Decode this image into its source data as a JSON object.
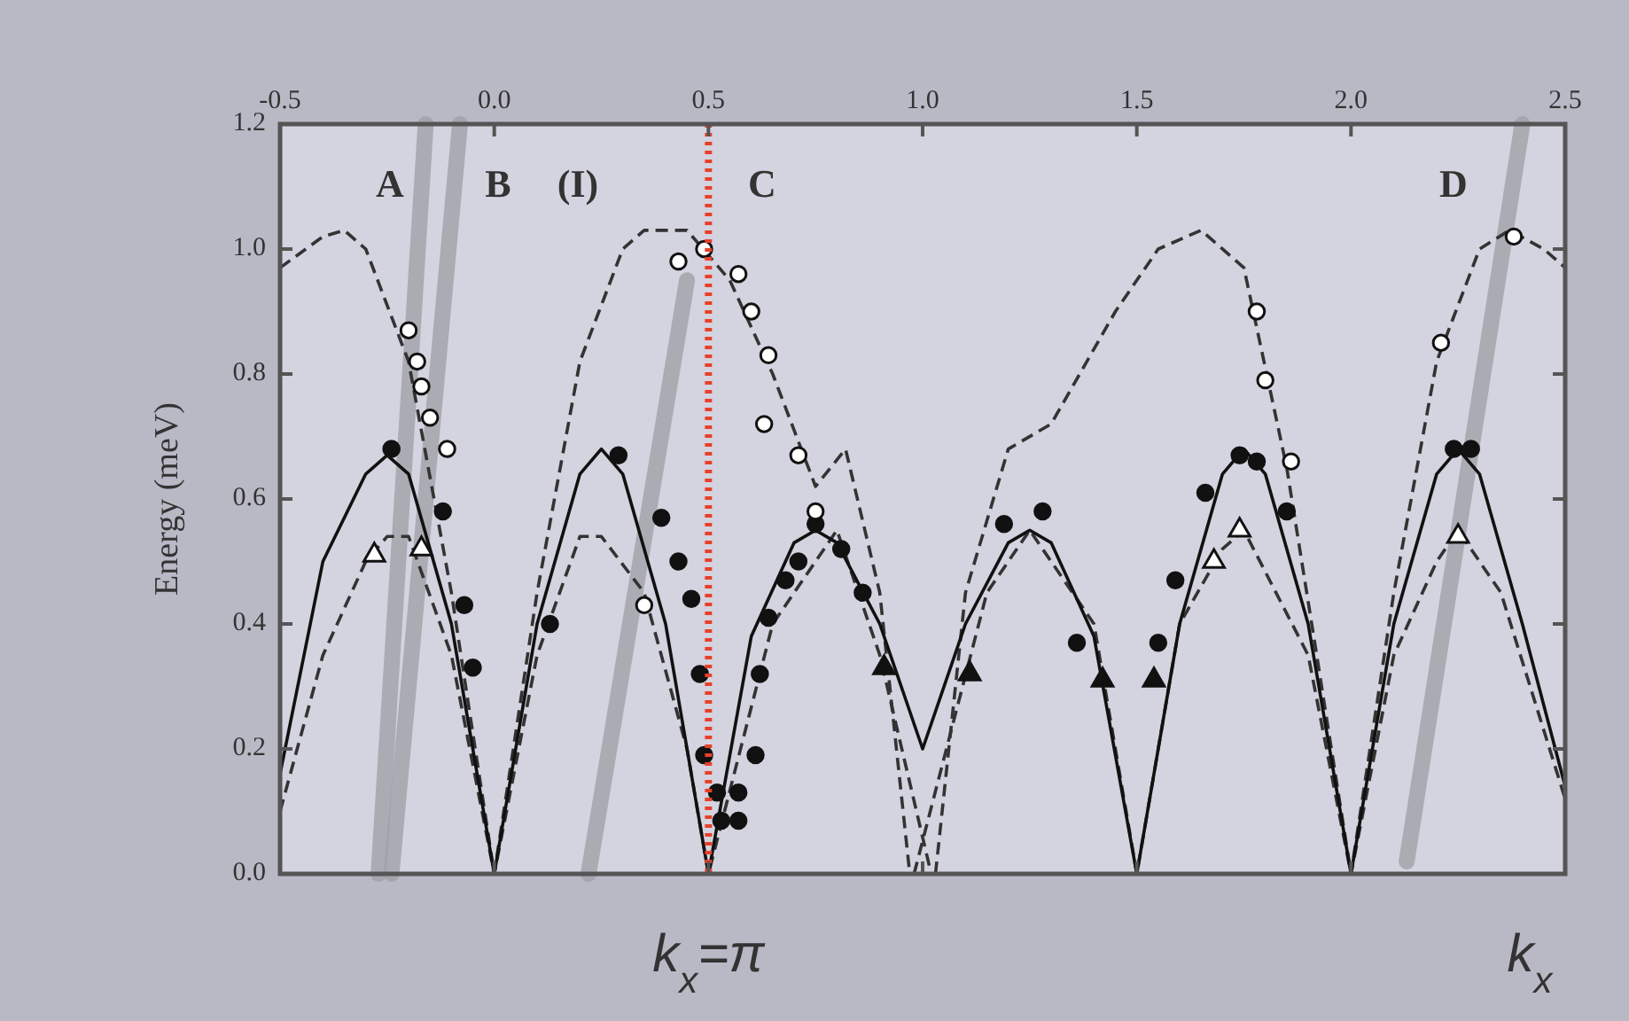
{
  "chart_data": {
    "type": "line",
    "ylabel": "Energy (meV)",
    "xlabel": "k$_{x}$",
    "xlim": [
      -0.5,
      2.5
    ],
    "xticks": [
      {
        "value": -0.5,
        "label": "-0.5"
      },
      {
        "value": 0,
        "label": "0.0"
      },
      {
        "value": 0.5,
        "label": "0.5"
      },
      {
        "value": 1,
        "label": "1.0"
      },
      {
        "value": 1.5,
        "label": "1.5"
      },
      {
        "value": 2,
        "label": "2.0"
      },
      {
        "value": 2.5,
        "label": "2.5"
      }
    ],
    "ylim": [
      0,
      1.2
    ],
    "yticks": [
      {
        "value": 0,
        "label": "0.0"
      },
      {
        "value": 0.2,
        "label": "0.2"
      },
      {
        "value": 0.4,
        "label": "0.4"
      },
      {
        "value": 0.6,
        "label": "0.6"
      },
      {
        "value": 0.8,
        "label": "0.8"
      },
      {
        "value": 1,
        "label": "1.0"
      },
      {
        "value": 1.2,
        "label": "1.2"
      }
    ],
    "grid": false,
    "ref_lines": [
      {
        "axis": "x",
        "value": 0.5,
        "label": "k$_{x}$=π",
        "color": "#e8402a",
        "line_style": "dotted"
      }
    ],
    "annotations": [
      "A",
      "B",
      "(I)",
      "C",
      "D"
    ],
    "series": [
      {
        "color": "#a0a0a8",
        "line_style": "solid",
        "marker": "none",
        "x": [
          -0.16,
          -0.27
        ],
        "values": [
          1.2,
          0
        ]
      },
      {
        "color": "#a0a0a8",
        "line_style": "solid",
        "marker": "none",
        "x": [
          -0.08,
          -0.24
        ],
        "values": [
          1.2,
          0
        ]
      },
      {
        "color": "#a0a0a8",
        "line_style": "solid",
        "marker": "none",
        "x": [
          0.45,
          0.22
        ],
        "values": [
          0.95,
          0
        ]
      },
      {
        "color": "#a0a0a8",
        "line_style": "solid",
        "marker": "none",
        "x": [
          2.4,
          2.13
        ],
        "values": [
          1.2,
          0.02
        ]
      },
      {
        "color": "#333333",
        "line_style": "dashed",
        "marker": "none",
        "x": [
          -0.5,
          -0.4,
          -0.35,
          -0.3,
          -0.2,
          -0.1,
          0,
          0.1,
          0.2,
          0.3,
          0.35,
          0.45,
          0.55,
          0.65,
          0.75,
          0.82,
          0.9,
          0.97
        ],
        "values": [
          0.97,
          1.02,
          1.03,
          1.0,
          0.82,
          0.45,
          0,
          0.45,
          0.82,
          1.0,
          1.03,
          1.03,
          0.95,
          0.8,
          0.62,
          0.68,
          0.45,
          0
        ]
      },
      {
        "color": "#333333",
        "line_style": "dashed",
        "marker": "none",
        "x": [
          1.03,
          1.1,
          1.2,
          1.3,
          1.45,
          1.55,
          1.65,
          1.75,
          1.85,
          1.92,
          2,
          2.1,
          2.2,
          2.3,
          2.37,
          2.45,
          2.5
        ],
        "values": [
          0,
          0.45,
          0.68,
          0.72,
          0.9,
          1.0,
          1.03,
          0.97,
          0.65,
          0.35,
          0,
          0.45,
          0.82,
          1.0,
          1.03,
          1.0,
          0.97
        ]
      },
      {
        "color": "#333333",
        "line_style": "dashed",
        "marker": "none",
        "x": [
          -0.5,
          -0.4,
          -0.3,
          -0.25,
          -0.2,
          -0.1,
          0,
          0.1,
          0.2,
          0.25,
          0.35,
          0.45,
          0.5,
          0.65,
          0.8,
          0.9,
          1.02
        ],
        "values": [
          0.1,
          0.35,
          0.5,
          0.54,
          0.54,
          0.35,
          0,
          0.35,
          0.54,
          0.54,
          0.45,
          0.2,
          0,
          0.4,
          0.55,
          0.35,
          0
        ]
      },
      {
        "color": "#333333",
        "line_style": "dashed",
        "marker": "none",
        "x": [
          0.98,
          1.15,
          1.25,
          1.4,
          1.5,
          1.6,
          1.7,
          1.75,
          1.9,
          2,
          2.1,
          2.2,
          2.25,
          2.35,
          2.5
        ],
        "values": [
          0,
          0.45,
          0.55,
          0.4,
          0,
          0.4,
          0.52,
          0.55,
          0.35,
          0,
          0.35,
          0.5,
          0.55,
          0.45,
          0.12
        ]
      },
      {
        "color": "#111111",
        "line_style": "solid",
        "marker": "none",
        "x": [
          -0.5,
          -0.4,
          -0.3,
          -0.25,
          -0.2,
          -0.1,
          0,
          0.1,
          0.2,
          0.25,
          0.3,
          0.4,
          0.5,
          0.6,
          0.7,
          0.75,
          0.8,
          0.9,
          1,
          1.1,
          1.2,
          1.25,
          1.3,
          1.4,
          1.5,
          1.6,
          1.7,
          1.75,
          1.8,
          1.9,
          2,
          2.1,
          2.2,
          2.25,
          2.3,
          2.4,
          2.5
        ],
        "values": [
          0.16,
          0.5,
          0.64,
          0.67,
          0.64,
          0.4,
          0,
          0.4,
          0.64,
          0.68,
          0.64,
          0.4,
          0,
          0.38,
          0.53,
          0.55,
          0.53,
          0.4,
          0.2,
          0.4,
          0.53,
          0.55,
          0.53,
          0.38,
          0,
          0.4,
          0.64,
          0.68,
          0.64,
          0.4,
          0,
          0.4,
          0.64,
          0.68,
          0.64,
          0.4,
          0.14
        ]
      },
      {
        "type": "scatter",
        "color": "#111111",
        "marker": "circle",
        "x": [
          -0.24,
          -0.12,
          -0.07,
          -0.05,
          0.13,
          0.29,
          0.39,
          0.43,
          0.46,
          0.48,
          0.49,
          0.52,
          0.53,
          0.57,
          0.57,
          0.61,
          0.62,
          0.64,
          0.68,
          0.71,
          0.75,
          0.81,
          0.86,
          1.19,
          1.28,
          1.36,
          1.55,
          1.59,
          1.66,
          1.74,
          1.78,
          1.85,
          2.24,
          2.28
        ],
        "values": [
          0.68,
          0.58,
          0.43,
          0.33,
          0.4,
          0.67,
          0.57,
          0.5,
          0.44,
          0.32,
          0.19,
          0.13,
          0.085,
          0.085,
          0.13,
          0.19,
          0.32,
          0.41,
          0.47,
          0.5,
          0.56,
          0.52,
          0.45,
          0.56,
          0.58,
          0.37,
          0.37,
          0.47,
          0.61,
          0.67,
          0.66,
          0.58,
          0.68,
          0.68
        ]
      },
      {
        "type": "scatter",
        "color": "#ffffff",
        "marker": "circle",
        "x": [
          -0.2,
          -0.18,
          -0.17,
          -0.15,
          -0.11,
          0.35,
          0.43,
          0.49,
          0.57,
          0.6,
          0.64,
          0.63,
          0.71,
          0.75,
          1.78,
          1.8,
          1.86,
          2.21,
          2.38
        ],
        "values": [
          0.87,
          0.82,
          0.78,
          0.73,
          0.68,
          0.43,
          0.98,
          1.0,
          0.96,
          0.9,
          0.83,
          0.72,
          0.67,
          0.58,
          0.9,
          0.79,
          0.66,
          0.85,
          1.02
        ]
      },
      {
        "type": "scatter",
        "color": "#111111",
        "marker": "triangle",
        "x": [
          0.91,
          1.11,
          1.42,
          1.54
        ],
        "values": [
          0.33,
          0.32,
          0.31,
          0.31
        ]
      },
      {
        "type": "scatter",
        "color": "#ffffff",
        "marker": "triangle",
        "x": [
          -0.28,
          -0.17,
          1.68,
          1.74,
          2.25
        ],
        "values": [
          0.51,
          0.52,
          0.5,
          0.55,
          0.54
        ]
      }
    ]
  }
}
